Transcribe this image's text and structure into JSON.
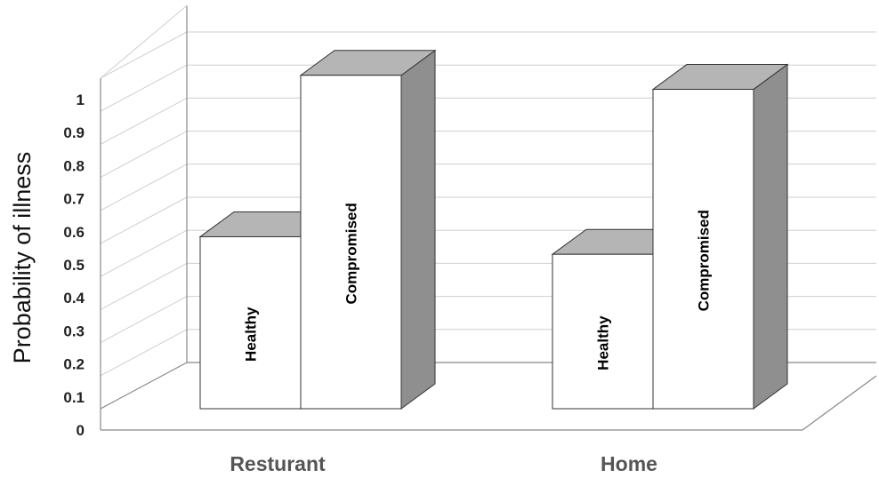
{
  "chart_data": {
    "type": "bar",
    "title": "",
    "xlabel": "",
    "ylabel": "Probability of illness",
    "ylim": [
      0,
      1
    ],
    "yticks": [
      "0",
      "0.1",
      "0.2",
      "0.3",
      "0.4",
      "0.5",
      "0.6",
      "0.7",
      "0.8",
      "0.9",
      "1"
    ],
    "categories": [
      "Resturant",
      "Home"
    ],
    "series": [
      {
        "name": "Healthy",
        "values": [
          0.49,
          0.44
        ]
      },
      {
        "name": "Compromised",
        "values": [
          0.95,
          0.91
        ]
      }
    ],
    "colors": {
      "front": "#ffffff",
      "top": "#b5b5b5",
      "side": "#8f8f8f"
    },
    "grid": true,
    "legend": "none",
    "three_d": true
  }
}
